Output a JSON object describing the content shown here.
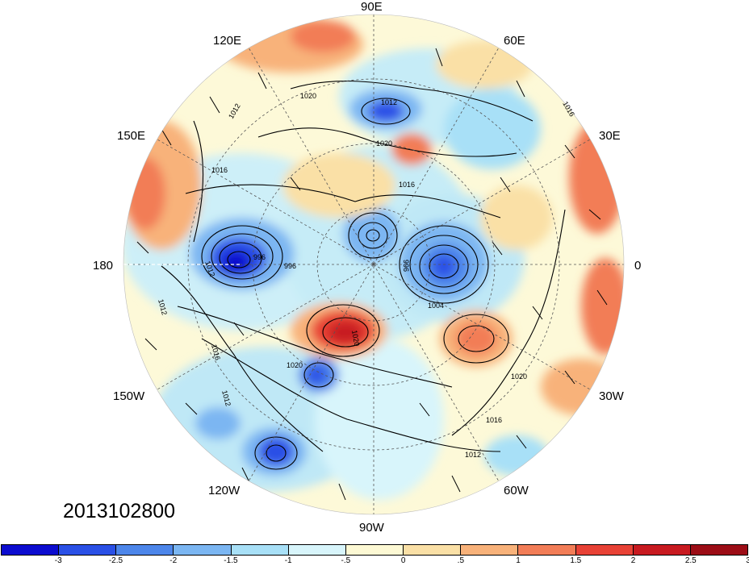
{
  "date_label": "2013102800",
  "longitude_labels": [
    {
      "text": "90E",
      "id": "lon-90e"
    },
    {
      "text": "60E",
      "id": "lon-60e"
    },
    {
      "text": "30E",
      "id": "lon-30e"
    },
    {
      "text": "0",
      "id": "lon-0"
    },
    {
      "text": "30W",
      "id": "lon-30w"
    },
    {
      "text": "60W",
      "id": "lon-60w"
    },
    {
      "text": "90W",
      "id": "lon-90w"
    },
    {
      "text": "120W",
      "id": "lon-120w"
    },
    {
      "text": "150W",
      "id": "lon-150w"
    },
    {
      "text": "180",
      "id": "lon-180"
    },
    {
      "text": "150E",
      "id": "lon-150e"
    },
    {
      "text": "120E",
      "id": "lon-120e"
    }
  ],
  "isobar_labels": [
    "1020",
    "1012",
    "1012",
    "1016",
    "1020",
    "1016",
    "1016",
    "996",
    "1012",
    "996",
    "996",
    "1004",
    "1020",
    "1020",
    "1016",
    "1012",
    "1016",
    "1012",
    "1020",
    "1012"
  ],
  "colorbar": {
    "colors": [
      "#0c0ccf",
      "#2a50e6",
      "#4d86ea",
      "#7bb6f2",
      "#a8e0f7",
      "#d8f5fb",
      "#fdf9d4",
      "#fae0a6",
      "#f8b27a",
      "#f27d57",
      "#e84236",
      "#c81a20",
      "#9c0d16"
    ],
    "ticks": [
      "-3",
      "-2.5",
      "-2",
      "-1.5",
      "-1",
      "-.5",
      "0",
      ".5",
      "1",
      "1.5",
      "2",
      "2.5",
      "3"
    ]
  },
  "colors": {
    "background_disk": "#fef9d8",
    "contour": "#000000"
  }
}
